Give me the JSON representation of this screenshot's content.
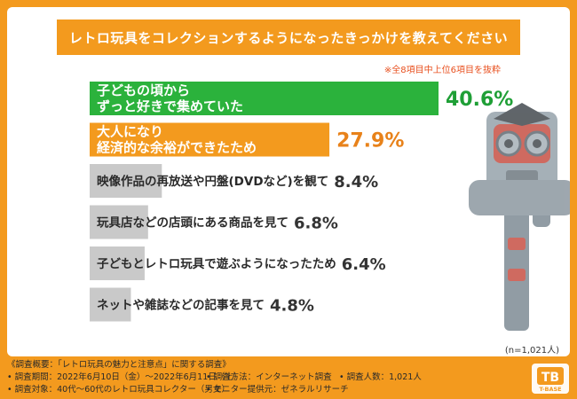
{
  "title": "レトロ玩具をコレクションするようになったきっかけを教えてください",
  "note": "※全8項目中上位6項目を抜粋",
  "sample_size": "(n=1,021人)",
  "colors": {
    "top1": "#2bb23c",
    "top2": "#f39a1e",
    "other": "#c9c9c9",
    "top1_value": "#1f9f36",
    "top2_value": "#e8821a",
    "other_value": "#333333"
  },
  "chart_data": {
    "type": "bar",
    "orientation": "horizontal",
    "title": "レトロ玩具をコレクションするようになったきっかけを教えてください",
    "categories": [
      [
        "子どもの頃から",
        "ずっと好きで集めていた"
      ],
      [
        "大人になり",
        "経済的な余裕ができたため"
      ],
      [
        "映像作品の再放送や円盤(DVDなど)を観て"
      ],
      [
        "玩具店などの店頭にある商品を見て"
      ],
      [
        "子どもとレトロ玩具で遊ぶようになったため"
      ],
      [
        "ネットや雑誌などの記事を見て"
      ]
    ],
    "values": [
      40.6,
      27.9,
      8.4,
      6.8,
      6.4,
      4.8
    ],
    "value_labels": [
      "40.6%",
      "27.9%",
      "8.4%",
      "6.8%",
      "6.4%",
      "4.8%"
    ],
    "unit": "%",
    "xlim": [
      0,
      40.6
    ]
  },
  "footer": {
    "survey_name": "《調査概要：「レトロ玩具の魅力と注意点」に関する調査》",
    "period": "• 調査期間：2022年6月10日（金）～2022年6月11日（土）",
    "method": "• 調査方法：インターネット調査",
    "count": "• 調査人数：1,021人",
    "target": "• 調査対象：40代～60代のレトロ玩具コレクター（男女）",
    "provider": "• モニター提供元：ゼネラルリサーチ"
  },
  "logo": {
    "mark": "TB",
    "text": "T-BASE"
  }
}
